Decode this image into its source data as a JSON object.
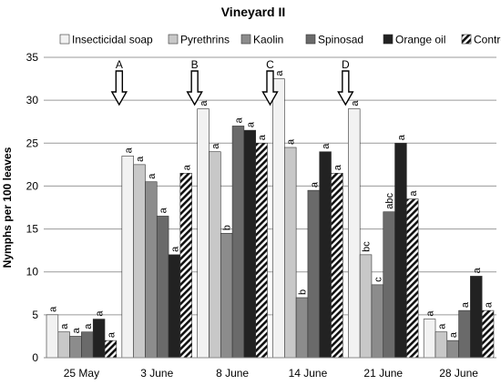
{
  "chart_data": {
    "type": "bar",
    "title": "Vineyard II",
    "xlabel": "",
    "ylabel": "Nymphs per 100 leaves",
    "ylim": [
      0,
      35
    ],
    "yticks": [
      0,
      5,
      10,
      15,
      20,
      25,
      30,
      35
    ],
    "grid": true,
    "legend_position": "top",
    "categories": [
      "25 May",
      "3 June",
      "8 June",
      "14 June",
      "21 June",
      "28 June"
    ],
    "series": [
      {
        "name": "Insecticidal soap",
        "color": "#f2f2f2",
        "pattern": "solid",
        "values": [
          5,
          23.5,
          29,
          32.5,
          29,
          4.5
        ],
        "labels": [
          "a",
          "a",
          "a",
          "a",
          "a",
          "a"
        ]
      },
      {
        "name": "Pyrethrins",
        "color": "#c8c8c8",
        "pattern": "solid",
        "values": [
          3,
          22.5,
          24,
          24.5,
          12,
          3
        ],
        "labels": [
          "a",
          "a",
          "a",
          "a",
          "bc",
          "a"
        ]
      },
      {
        "name": "Kaolin",
        "color": "#8c8c8c",
        "pattern": "solid",
        "values": [
          2.5,
          20.5,
          14.5,
          7,
          8.5,
          2
        ],
        "labels": [
          "a",
          "a",
          "b",
          "b",
          "c",
          "a"
        ]
      },
      {
        "name": "Spinosad",
        "color": "#6a6a6a",
        "pattern": "solid",
        "values": [
          3,
          16.5,
          27,
          19.5,
          17,
          5.5
        ],
        "labels": [
          "a",
          "a",
          "a",
          "a",
          "abc",
          "a"
        ]
      },
      {
        "name": "Orange oil",
        "color": "#222222",
        "pattern": "solid",
        "values": [
          4.5,
          12,
          26.5,
          24,
          25,
          9.5
        ],
        "labels": [
          "a",
          "a",
          "a",
          "a",
          "a",
          "a"
        ]
      },
      {
        "name": "Control",
        "color": "#111111",
        "pattern": "diagonal-stripes",
        "values": [
          2,
          21.5,
          25,
          21.5,
          18.5,
          5.5
        ],
        "labels": [
          "a",
          "a",
          "a",
          "a",
          "a",
          "a"
        ]
      }
    ],
    "annotations": [
      {
        "text": "A",
        "between": [
          "25 May",
          "3 June"
        ],
        "type": "down-arrow"
      },
      {
        "text": "B",
        "between": [
          "3 June",
          "8 June"
        ],
        "type": "down-arrow"
      },
      {
        "text": "C",
        "between": [
          "8 June",
          "14 June"
        ],
        "type": "down-arrow"
      },
      {
        "text": "D",
        "between": [
          "14 June",
          "21 June"
        ],
        "type": "down-arrow"
      }
    ]
  }
}
